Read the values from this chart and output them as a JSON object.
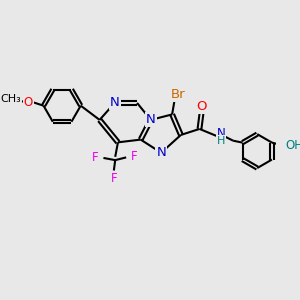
{
  "bg_color": "#e8e8e8",
  "bond_color": "#000000",
  "bond_width": 1.5,
  "atom_colors": {
    "N": "#0000cc",
    "O": "#ff0000",
    "F": "#ee00ee",
    "Br": "#cc6600",
    "H": "#008080",
    "C": "#000000"
  },
  "font_size": 8.5
}
